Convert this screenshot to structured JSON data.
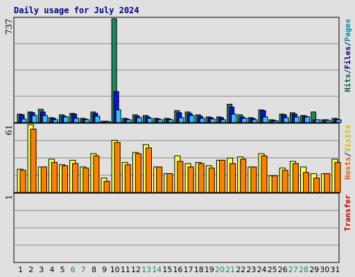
{
  "chart_data": {
    "type": "bar",
    "title": "Daily usage for July 2024",
    "categories": [
      "1",
      "2",
      "3",
      "4",
      "5",
      "6",
      "7",
      "8",
      "9",
      "10",
      "11",
      "12",
      "13",
      "14",
      "15",
      "16",
      "17",
      "18",
      "19",
      "20",
      "21",
      "22",
      "23",
      "24",
      "25",
      "26",
      "27",
      "28",
      "29",
      "30",
      "31"
    ],
    "weekend_days": [
      "6",
      "7",
      "13",
      "14",
      "20",
      "21",
      "27",
      "28"
    ],
    "panels": [
      {
        "name": "traffic",
        "ymax_label": "737",
        "ylim": [
          0,
          737
        ],
        "side_label": [
          {
            "text": "Hits",
            "color": "#006040"
          },
          {
            "text": "/",
            "color": "#000080"
          },
          {
            "text": "Files",
            "color": "#000080"
          },
          {
            "text": "/",
            "color": "#000080"
          },
          {
            "text": "Pages",
            "color": "#0090a0"
          }
        ],
        "series": [
          {
            "name": "Hits",
            "color": "#1a8a5a",
            "values": [
              60,
              75,
              95,
              35,
              55,
              65,
              30,
              75,
              10,
              737,
              30,
              55,
              50,
              30,
              30,
              85,
              75,
              55,
              40,
              40,
              130,
              55,
              35,
              90,
              20,
              60,
              70,
              50,
              75,
              20,
              30
            ]
          },
          {
            "name": "Files",
            "color": "#1010d0",
            "values": [
              55,
              70,
              75,
              30,
              45,
              60,
              25,
              65,
              10,
              220,
              25,
              45,
              40,
              25,
              25,
              70,
              65,
              45,
              35,
              35,
              110,
              40,
              30,
              85,
              15,
              55,
              60,
              45,
              20,
              20,
              25
            ]
          },
          {
            "name": "Pages",
            "color": "#30c0ff",
            "values": [
              25,
              50,
              50,
              20,
              40,
              30,
              20,
              45,
              8,
              90,
              20,
              35,
              30,
              20,
              20,
              35,
              50,
              30,
              25,
              20,
              60,
              30,
              20,
              40,
              12,
              35,
              40,
              40,
              20,
              15,
              20
            ]
          }
        ]
      },
      {
        "name": "visits",
        "ymax_label": "61",
        "ylim": [
          0,
          61
        ],
        "side_label": [
          {
            "text": "Hosts",
            "color": "#e06000"
          },
          {
            "text": "/",
            "color": "#000080"
          },
          {
            "text": "Visits",
            "color": "#d0c000"
          }
        ],
        "series": [
          {
            "name": "Visits",
            "color": "#ffff40",
            "values": [
              21,
              61,
              23,
              30,
              25,
              29,
              23,
              35,
              13,
              47,
              27,
              36,
              43,
              23,
              17,
              33,
              26,
              27,
              24,
              29,
              31,
              32,
              23,
              35,
              15,
              22,
              28,
              23,
              17,
              17,
              30
            ]
          },
          {
            "name": "Hosts",
            "color": "#ff8000",
            "values": [
              20,
              57,
              23,
              27,
              24,
              26,
              22,
              33,
              10,
              45,
              25,
              35,
              40,
              23,
              17,
              28,
              23,
              26,
              22,
              29,
              26,
              30,
              23,
              33,
              15,
              20,
              26,
              18,
              13,
              17,
              27
            ]
          }
        ]
      },
      {
        "name": "transfer",
        "ymax_label": "1",
        "ylim": [
          0,
          1
        ],
        "side_label": [
          {
            "text": "Transfer",
            "color": "#c00000"
          }
        ],
        "series": [
          {
            "name": "Transfer",
            "color": "#c00000",
            "values": []
          }
        ]
      }
    ]
  }
}
